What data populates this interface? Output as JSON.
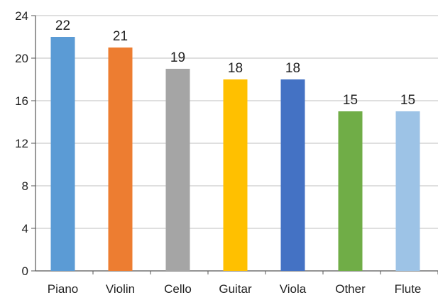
{
  "chart_data": {
    "type": "bar",
    "categories": [
      "Piano",
      "Violin",
      "Cello",
      "Guitar",
      "Viola",
      "Other",
      "Flute"
    ],
    "values": [
      22,
      21,
      19,
      18,
      18,
      15,
      15
    ],
    "data_labels": [
      "22",
      "21",
      "19",
      "18",
      "18",
      "15",
      "15"
    ],
    "bar_colors": [
      "#5b9bd5",
      "#ed7d31",
      "#a5a5a5",
      "#ffc000",
      "#4472c4",
      "#70ad47",
      "#9dc3e6"
    ],
    "ylim": [
      0,
      24
    ],
    "yticks": [
      0,
      4,
      8,
      12,
      16,
      20,
      24
    ],
    "ytick_labels": [
      "0",
      "4",
      "8",
      "12",
      "16",
      "20",
      "24"
    ],
    "grid": "horizontal",
    "legend": "none",
    "title": "",
    "xlabel": "",
    "ylabel": ""
  }
}
